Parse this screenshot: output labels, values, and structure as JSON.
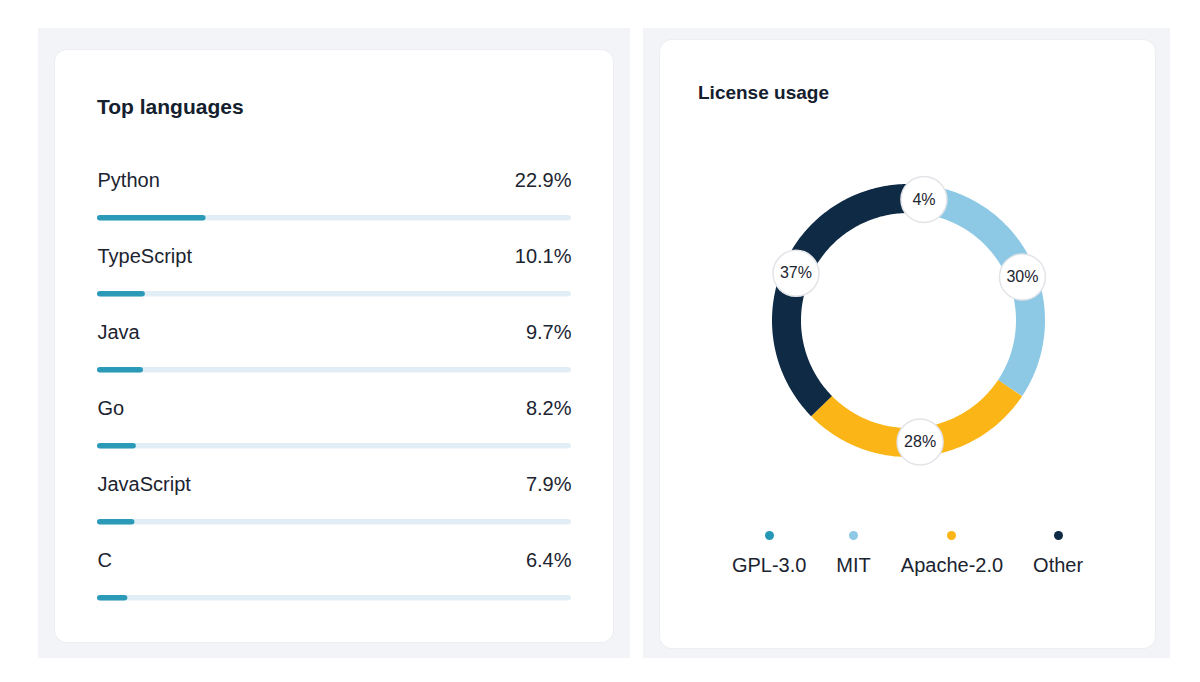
{
  "chart_data": [
    {
      "type": "bar",
      "title": "Top languages",
      "orientation": "horizontal",
      "categories": [
        "Python",
        "TypeScript",
        "Java",
        "Go",
        "JavaScript",
        "C"
      ],
      "values": [
        22.9,
        10.1,
        9.7,
        8.2,
        7.9,
        6.4
      ],
      "value_labels": [
        "22.9%",
        "10.1%",
        "9.7%",
        "8.2%",
        "7.9%",
        "6.4%"
      ],
      "data_labels": true,
      "xlim": [
        0,
        100
      ],
      "tick_labels": "y",
      "color": "#2b9ab8"
    },
    {
      "type": "donut",
      "title": "License usage",
      "categories": [
        "GPL-3.0",
        "MIT",
        "Apache-2.0",
        "Other"
      ],
      "values": [
        4,
        30,
        28,
        37
      ],
      "value_labels": [
        "4%",
        "30%",
        "28%",
        "37%"
      ],
      "colors": [
        "#2598b5",
        "#8dc9e5",
        "#fbb516",
        "#0e2a45"
      ],
      "data_labels": true,
      "legend": "bottom"
    }
  ]
}
